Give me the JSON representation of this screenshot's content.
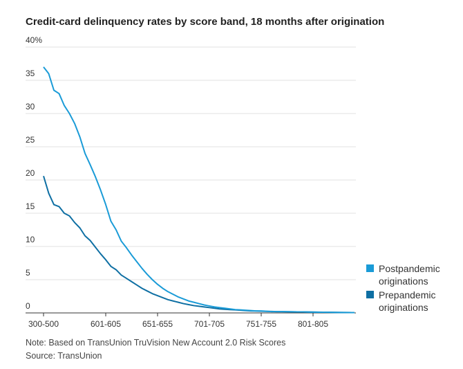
{
  "chart_data": {
    "type": "line",
    "title": "Credit-card delinquency rates by score band, 18 months after origination",
    "note": "Note: Based on TransUnion TruVision New Account 2.0 Risk Scores",
    "source": "Source: TransUnion",
    "categories": [
      "300-500",
      null,
      null,
      null,
      null,
      null,
      null,
      null,
      null,
      null,
      null,
      null,
      "601-605",
      null,
      null,
      null,
      null,
      null,
      null,
      null,
      null,
      null,
      "651-655",
      null,
      null,
      null,
      null,
      null,
      null,
      null,
      null,
      null,
      "701-705",
      null,
      null,
      null,
      null,
      null,
      null,
      null,
      null,
      null,
      "751-755",
      null,
      null,
      null,
      null,
      null,
      null,
      null,
      null,
      null,
      "801-805",
      null,
      null,
      null,
      null,
      null,
      null,
      null,
      null
    ],
    "series": [
      {
        "name": "Postpandemic originations",
        "color": "#1a9bd7",
        "values": [
          37,
          36,
          33.5,
          33,
          31.2,
          30,
          28.5,
          26.5,
          24,
          22.3,
          20.5,
          18.5,
          16.3,
          13.8,
          12.5,
          10.8,
          9.8,
          8.7,
          7.7,
          6.7,
          5.8,
          5,
          4.3,
          3.7,
          3.2,
          2.8,
          2.4,
          2.1,
          1.8,
          1.6,
          1.4,
          1.2,
          1.05,
          0.9,
          0.8,
          0.7,
          0.6,
          0.5,
          0.45,
          0.4,
          0.35,
          0.3,
          0.3,
          0.25,
          0.2,
          0.2,
          0.2,
          0.18,
          0.17,
          0.15,
          0.15,
          0.13,
          0.12,
          0.1,
          0.1,
          0.09,
          0.08,
          0.07,
          0.06,
          0.05,
          0.05
        ]
      },
      {
        "name": "Prepandemic originations",
        "color": "#0e6fa3",
        "values": [
          20.6,
          18,
          16.3,
          16,
          15,
          14.6,
          13.6,
          12.8,
          11.6,
          10.9,
          9.9,
          8.9,
          8,
          7,
          6.5,
          5.7,
          5.2,
          4.7,
          4.2,
          3.7,
          3.3,
          2.9,
          2.6,
          2.3,
          2,
          1.8,
          1.6,
          1.4,
          1.25,
          1.1,
          1,
          0.9,
          0.8,
          0.7,
          0.6,
          0.55,
          0.5,
          0.45,
          0.4,
          0.35,
          0.3,
          0.28,
          0.26,
          0.24,
          0.22,
          0.2,
          0.19,
          0.18,
          0.17,
          0.16,
          0.15,
          0.14,
          0.13,
          0.12,
          0.11,
          0.1,
          0.09,
          0.08,
          0.07,
          0.06,
          0.05
        ]
      }
    ],
    "ylim": [
      0,
      40
    ],
    "yticks": [
      0,
      5,
      10,
      15,
      20,
      25,
      30,
      35,
      {
        "value": 40,
        "label": "40%"
      }
    ],
    "grid": true
  }
}
